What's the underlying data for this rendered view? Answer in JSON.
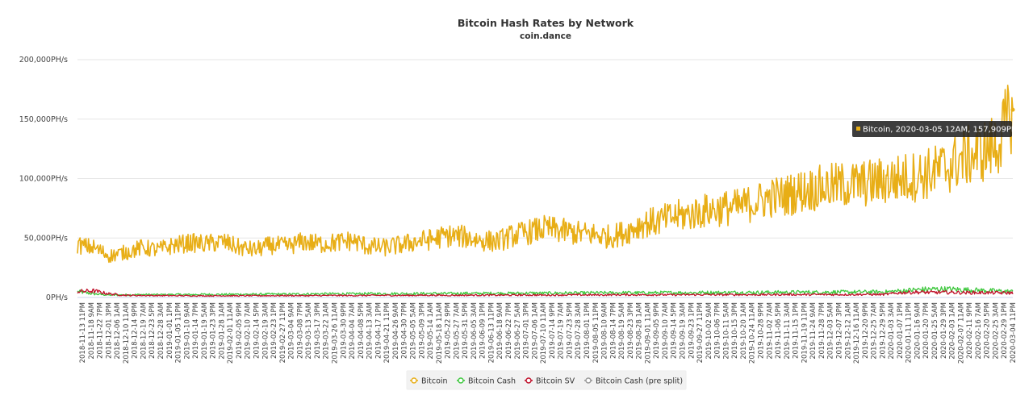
{
  "chart_data": {
    "type": "line",
    "title": "Bitcoin Hash Rates by Network",
    "subtitle": "coin.dance",
    "ylim": [
      0,
      200000
    ],
    "y_tick_values": [
      0,
      50000,
      100000,
      150000,
      200000
    ],
    "y_tick_labels": [
      "0PH/s",
      "50,000PH/s",
      "100,000PH/s",
      "150,000PH/s",
      "200,000PH/s"
    ],
    "x_tick_labels": [
      "2018-11-13 11PM",
      "2018-11-18 9AM",
      "2018-11-22 7PM",
      "2018-12-01 3PM",
      "2018-12-06 1AM",
      "2018-12-10 11AM",
      "2018-12-14 9PM",
      "2018-12-19 7AM",
      "2018-12-23 5PM",
      "2018-12-28 3AM",
      "2019-01-01 1PM",
      "2019-01-05 11PM",
      "2019-01-10 9AM",
      "2019-01-14 7PM",
      "2019-01-19 5AM",
      "2019-01-23 3PM",
      "2019-01-28 1AM",
      "2019-02-01 11AM",
      "2019-02-05 9PM",
      "2019-02-10 7AM",
      "2019-02-14 5PM",
      "2019-02-19 3AM",
      "2019-02-23 1PM",
      "2019-02-27 11PM",
      "2019-03-04 9AM",
      "2019-03-08 7PM",
      "2019-03-13 5AM",
      "2019-03-17 3PM",
      "2019-03-22 1AM",
      "2019-03-26 11AM",
      "2019-03-30 9PM",
      "2019-04-04 7AM",
      "2019-04-08 5PM",
      "2019-04-13 3AM",
      "2019-04-17 1PM",
      "2019-04-21 11PM",
      "2019-04-26 9AM",
      "2019-04-30 7PM",
      "2019-05-05 5AM",
      "2019-05-09 3PM",
      "2019-05-14 1AM",
      "2019-05-18 11AM",
      "2019-05-22 9PM",
      "2019-05-27 7AM",
      "2019-05-31 5PM",
      "2019-06-05 3AM",
      "2019-06-09 1PM",
      "2019-06-13 11PM",
      "2019-06-18 9AM",
      "2019-06-22 7PM",
      "2019-06-27 5AM",
      "2019-07-01 3PM",
      "2019-07-06 1AM",
      "2019-07-10 11AM",
      "2019-07-14 9PM",
      "2019-07-19 7AM",
      "2019-07-23 5PM",
      "2019-07-28 3AM",
      "2019-08-01 1PM",
      "2019-08-05 11PM",
      "2019-08-10 9AM",
      "2019-08-14 7PM",
      "2019-08-19 5AM",
      "2019-08-23 3PM",
      "2019-08-28 1AM",
      "2019-09-01 11AM",
      "2019-09-05 9PM",
      "2019-09-10 7AM",
      "2019-09-14 5PM",
      "2019-09-19 3AM",
      "2019-09-23 1PM",
      "2019-09-27 11PM",
      "2019-10-02 9AM",
      "2019-10-06 7PM",
      "2019-10-11 5AM",
      "2019-10-15 3PM",
      "2019-10-20 1AM",
      "2019-10-24 11AM",
      "2019-10-28 9PM",
      "2019-11-02 7AM",
      "2019-11-06 5PM",
      "2019-11-11 3AM",
      "2019-11-15 1PM",
      "2019-11-19 11PM",
      "2019-11-24 9AM",
      "2019-11-28 7PM",
      "2019-12-03 5AM",
      "2019-12-07 3PM",
      "2019-12-12 1AM",
      "2019-12-16 11AM",
      "2019-12-20 9PM",
      "2019-12-25 7AM",
      "2019-12-29 5PM",
      "2020-01-03 3AM",
      "2020-01-07 1PM",
      "2020-01-11 11PM",
      "2020-01-16 9AM",
      "2020-01-20 7PM",
      "2020-01-25 5AM",
      "2020-01-29 3PM",
      "2020-02-03 1AM",
      "2020-02-07 11AM",
      "2020-02-11 9PM",
      "2020-02-16 7AM",
      "2020-02-20 5PM",
      "2020-02-25 3AM",
      "2020-02-29 1PM",
      "2020-03-04 11PM"
    ],
    "series": [
      {
        "name": "Bitcoin",
        "color": "#e8ae16",
        "values": [
          44000,
          42000,
          35000,
          38000,
          42000,
          40000,
          44000,
          46000,
          45000,
          47000,
          42000,
          40000,
          44000,
          43000,
          47000,
          45000,
          46000,
          48000,
          43000,
          42000,
          44000,
          47000,
          49000,
          52000,
          51000,
          48000,
          47000,
          52000,
          55000,
          58000,
          56000,
          54000,
          53000,
          51000,
          55000,
          62000,
          64000,
          68000,
          70000,
          73000,
          75000,
          76000,
          80000,
          84000,
          86000,
          90000,
          92000,
          94000,
          95000,
          96000,
          98000,
          100000,
          102000,
          105000,
          110000,
          118000,
          122000,
          128000,
          157909
        ]
      },
      {
        "name": "Bitcoin Cash",
        "color": "#3ec83e",
        "values": [
          5000,
          3000,
          2000,
          2200,
          2400,
          2300,
          2500,
          2400,
          2600,
          2500,
          2700,
          2600,
          2800,
          2700,
          2900,
          3000,
          3100,
          3000,
          3200,
          3100,
          3300,
          3200,
          3400,
          3300,
          3500,
          3400,
          3600,
          3500,
          3700,
          3600,
          3800,
          3700,
          3900,
          3800,
          4000,
          3900,
          4000,
          4100,
          4000,
          4200,
          4100,
          4300,
          4200,
          4400,
          4300,
          4500,
          4400,
          4600,
          4500,
          4700,
          4600,
          5500,
          6500,
          7000,
          7000,
          6500,
          6000,
          5500,
          5000
        ]
      },
      {
        "name": "Bitcoin SV",
        "color": "#c0102a",
        "values": [
          5000,
          5500,
          3000,
          1800,
          1700,
          1600,
          1500,
          1500,
          1400,
          1500,
          1400,
          1500,
          1500,
          1600,
          1500,
          1600,
          1700,
          1600,
          1700,
          1800,
          1700,
          1800,
          1900,
          1800,
          1900,
          2000,
          1900,
          2000,
          2100,
          2000,
          2100,
          2200,
          2100,
          2200,
          2300,
          2200,
          2300,
          2200,
          2300,
          2400,
          2300,
          2400,
          2300,
          2400,
          2500,
          2400,
          2500,
          2400,
          2500,
          2600,
          2500,
          4000,
          4500,
          4200,
          4300,
          4100,
          4000,
          3900,
          3800
        ]
      },
      {
        "name": "Bitcoin Cash (pre split)",
        "color": "#999999",
        "values": []
      }
    ],
    "legend_position": "bottom-center",
    "grid": true,
    "tooltip": {
      "text": "Bitcoin, 2020-03-05 12AM, 157,909PH/s"
    }
  }
}
